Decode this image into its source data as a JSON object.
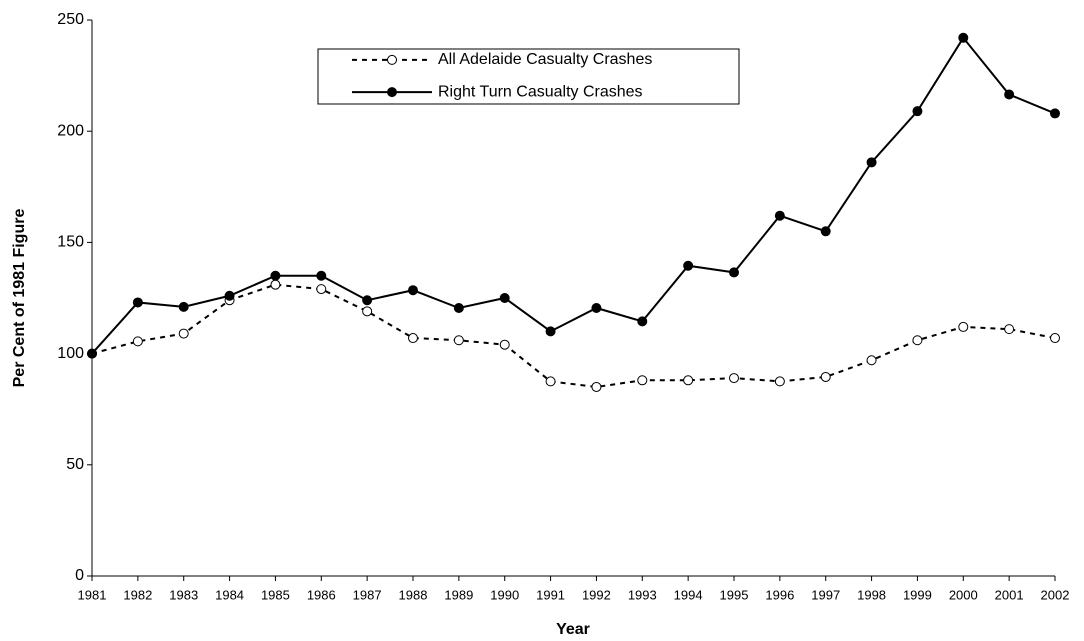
{
  "chart_data": {
    "type": "line",
    "x_label": "Year",
    "y_label": "Per Cent of 1981 Figure",
    "categories": [
      "1981",
      "1982",
      "1983",
      "1984",
      "1985",
      "1986",
      "1987",
      "1988",
      "1989",
      "1990",
      "1991",
      "1992",
      "1993",
      "1994",
      "1995",
      "1996",
      "1997",
      "1998",
      "1999",
      "2000",
      "2001",
      "2002"
    ],
    "series": [
      {
        "name": "All Adelaide Casualty Crashes",
        "color": "#000000",
        "style": "dashed",
        "marker": "open",
        "values": [
          100,
          105.5,
          109,
          124,
          131,
          129,
          119,
          107,
          106,
          104,
          87.5,
          85,
          88,
          88,
          89,
          87.5,
          89.5,
          97,
          106,
          112,
          111,
          107
        ]
      },
      {
        "name": "Right Turn Casualty Crashes",
        "color": "#000000",
        "style": "solid",
        "marker": "filled",
        "values": [
          100,
          123,
          121,
          126,
          135,
          135,
          124,
          128.5,
          120.5,
          125,
          110,
          120.5,
          114.5,
          139.5,
          136.5,
          162,
          155,
          186,
          209,
          242,
          216.5,
          208
        ]
      }
    ],
    "ylim": [
      0,
      250
    ],
    "yticks": [
      0,
      50,
      100,
      150,
      200,
      250
    ],
    "grid": false
  }
}
